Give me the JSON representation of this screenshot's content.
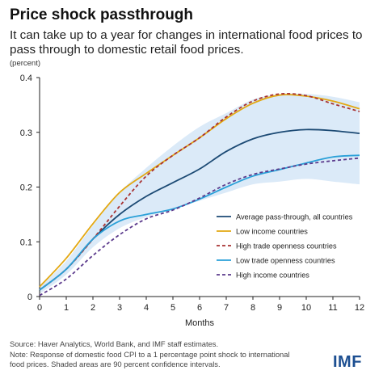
{
  "title": "Price shock passthrough",
  "subtitle": "It can take up to a year for changes in international food prices to pass through to domestic retail food prices.",
  "unit_label": "(percent)",
  "source_lines": [
    "Source: Haver Analytics, World Bank, and IMF staff estimates.",
    "Note: Response of domestic food CPI to a 1 percentage point shock to international",
    "food prices. Shaded areas are 90 percent confidence intervals."
  ],
  "logo_text": "IMF",
  "chart_data": {
    "type": "line",
    "xlabel": "Months",
    "ylabel": "(percent)",
    "x": [
      0,
      1,
      2,
      3,
      4,
      5,
      6,
      7,
      8,
      9,
      10,
      11,
      12
    ],
    "xlim": [
      0,
      12
    ],
    "ylim": [
      0,
      0.4
    ],
    "yticks": [
      0,
      0.1,
      0.2,
      0.3,
      0.4
    ],
    "ytick_labels": [
      "0",
      "0.1",
      "0.2",
      "0.3",
      "0.4"
    ],
    "grid": false,
    "legend_position": "bottom-right",
    "confidence_band": {
      "color": "#dbeaf8",
      "upper": [
        0.018,
        0.065,
        0.13,
        0.19,
        0.235,
        0.275,
        0.31,
        0.335,
        0.36,
        0.37,
        0.37,
        0.365,
        0.355
      ],
      "lower": [
        0.005,
        0.04,
        0.09,
        0.125,
        0.145,
        0.16,
        0.175,
        0.19,
        0.205,
        0.21,
        0.215,
        0.21,
        0.205
      ]
    },
    "series": [
      {
        "name": "Average pass-through, all countries",
        "color": "#1c4a74",
        "dash": false,
        "values": [
          0.012,
          0.05,
          0.105,
          0.15,
          0.183,
          0.208,
          0.233,
          0.265,
          0.288,
          0.3,
          0.305,
          0.303,
          0.298
        ]
      },
      {
        "name": "Low income countries",
        "color": "#e3a812",
        "dash": false,
        "values": [
          0.018,
          0.07,
          0.133,
          0.19,
          0.225,
          0.258,
          0.29,
          0.325,
          0.353,
          0.368,
          0.366,
          0.357,
          0.343
        ]
      },
      {
        "name": "High trade openness countries",
        "color": "#a83232",
        "dash": true,
        "values": [
          0.012,
          0.05,
          0.105,
          0.165,
          0.22,
          0.258,
          0.29,
          0.328,
          0.357,
          0.37,
          0.367,
          0.352,
          0.338
        ]
      },
      {
        "name": "Low trade openness countries",
        "color": "#2aa0d8",
        "dash": false,
        "values": [
          0.012,
          0.05,
          0.105,
          0.138,
          0.15,
          0.16,
          0.178,
          0.2,
          0.22,
          0.232,
          0.244,
          0.255,
          0.258
        ]
      },
      {
        "name": "High income countries",
        "color": "#5b3a8c",
        "dash": true,
        "values": [
          0.002,
          0.032,
          0.075,
          0.113,
          0.142,
          0.158,
          0.18,
          0.205,
          0.223,
          0.233,
          0.242,
          0.248,
          0.253
        ]
      }
    ]
  }
}
